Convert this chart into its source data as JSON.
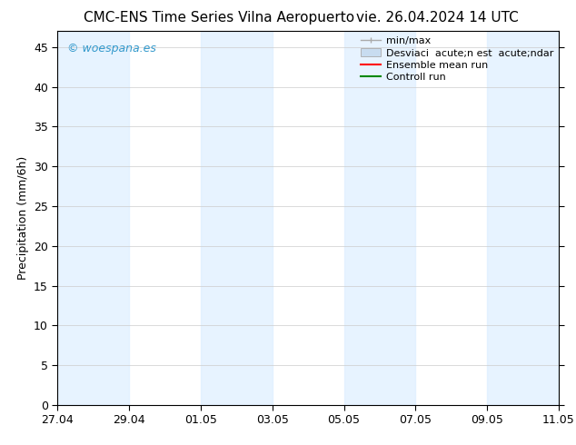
{
  "title_left": "CMC-ENS Time Series Vilna Aeropuerto",
  "title_right": "vie. 26.04.2024 14 UTC",
  "ylabel": "Precipitation (mm/6h)",
  "watermark": "© woespana.es",
  "watermark_color": "#3399cc",
  "background_color": "#ffffff",
  "plot_bg_color": "#ffffff",
  "ylim": [
    0,
    47
  ],
  "yticks": [
    0,
    5,
    10,
    15,
    20,
    25,
    30,
    35,
    40,
    45
  ],
  "xticklabels": [
    "27.04",
    "29.04",
    "01.05",
    "03.05",
    "05.05",
    "07.05",
    "09.05",
    "11.05"
  ],
  "xtick_positions": [
    0,
    2,
    4,
    6,
    8,
    10,
    12,
    14
  ],
  "shade_positions": [
    [
      0,
      2
    ],
    [
      4,
      6
    ],
    [
      8,
      10
    ],
    [
      12,
      14
    ]
  ],
  "shade_color": "#ddeeff",
  "shade_alpha": 0.7,
  "legend_minmax_color": "#aaaaaa",
  "legend_desv_color": "#c8dcf0",
  "legend_ensemble_color": "#ff0000",
  "legend_control_color": "#008800",
  "legend_label_minmax": "min/max",
  "legend_label_desv": "Desviaci  acute;n est  acute;ndar",
  "legend_label_ensemble": "Ensemble mean run",
  "legend_label_control": "Controll run",
  "title_fontsize": 11,
  "axis_fontsize": 9,
  "tick_fontsize": 9,
  "legend_fontsize": 8
}
